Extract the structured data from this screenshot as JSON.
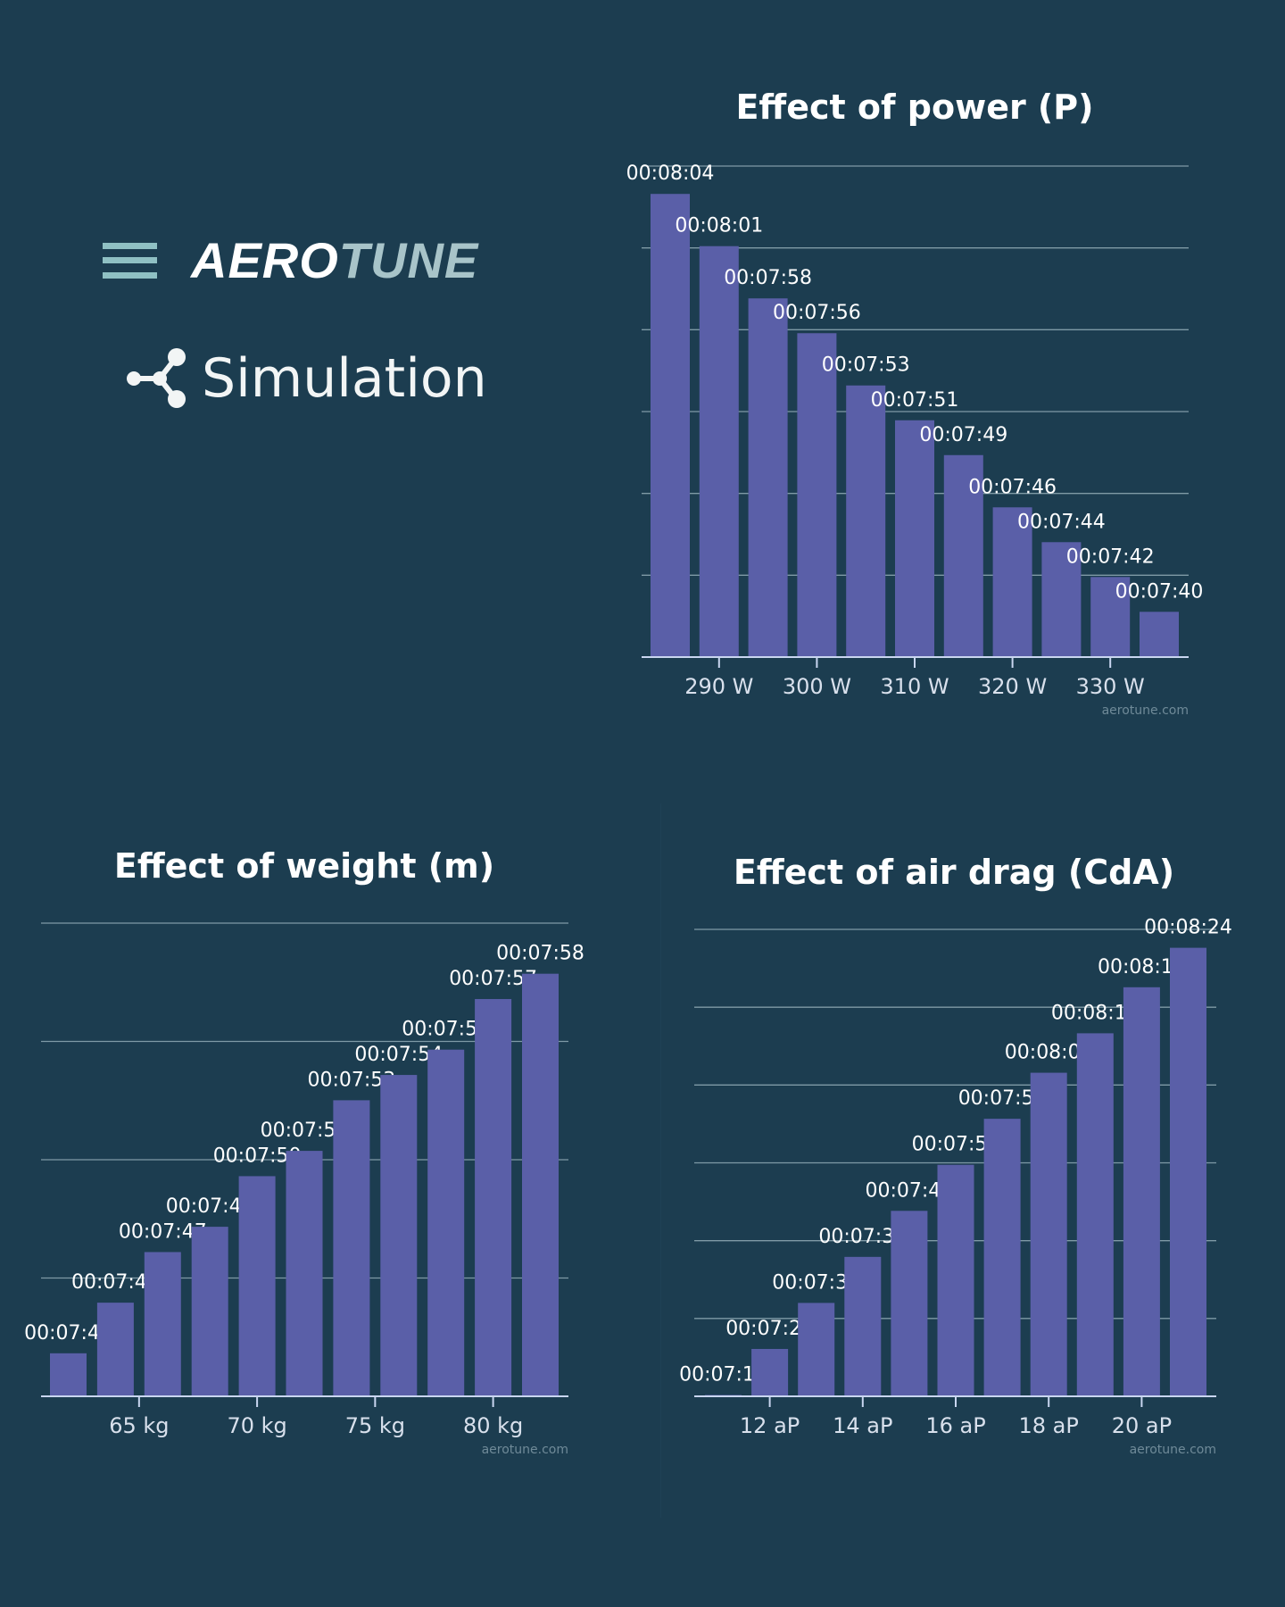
{
  "header": {
    "menu_icon": "hamburger-menu-icon",
    "logo": {
      "part1": "AERO",
      "part2": "TUNE"
    },
    "section_icon": "share-nodes-icon",
    "section_title": "Simulation"
  },
  "colors": {
    "background": "#1c3d50",
    "bar": "#5a5fa8",
    "gridline": "#7f9aa6",
    "axis": "#c9d6f0",
    "watermark": "#6f8a98",
    "logo_accent": "#a8c4c9"
  },
  "chart_data": [
    {
      "type": "bar",
      "title": "Effect of power (P)",
      "x": [
        285,
        290,
        295,
        300,
        305,
        310,
        315,
        320,
        325,
        330,
        335
      ],
      "x_unit": "W",
      "tick_labels": [
        "290 W",
        "300 W",
        "310 W",
        "320 W",
        "330 W"
      ],
      "ticks": [
        290,
        300,
        310,
        320,
        330
      ],
      "values": [
        "00:08:04",
        "00:08:01",
        "00:07:58",
        "00:07:56",
        "00:07:53",
        "00:07:51",
        "00:07:49",
        "00:07:46",
        "00:07:44",
        "00:07:42",
        "00:07:40"
      ],
      "ylim_seconds": [
        457.4,
        485.6
      ],
      "grid": true,
      "watermark": "aerotune.com"
    },
    {
      "type": "bar",
      "title": "Effect of weight (m)",
      "x": [
        62,
        64,
        66,
        68,
        70,
        72,
        74,
        76,
        78,
        80,
        82
      ],
      "x_unit": "kg",
      "tick_labels": [
        "65 kg",
        "70 kg",
        "75 kg",
        "80 kg"
      ],
      "ticks": [
        65,
        70,
        75,
        80
      ],
      "values": [
        "00:07:43",
        "00:07:45",
        "00:07:47",
        "00:07:48",
        "00:07:50",
        "00:07:51",
        "00:07:53",
        "00:07:54",
        "00:07:55",
        "00:07:57",
        "00:07:58"
      ],
      "ylim_seconds": [
        461.3,
        480
      ],
      "grid": true,
      "watermark": "aerotune.com"
    },
    {
      "type": "bar",
      "title": "Effect of air drag (CdA)",
      "x": [
        11,
        12,
        13,
        14,
        15,
        16,
        17,
        18,
        19,
        20,
        21
      ],
      "x_unit": "aP",
      "tick_labels": [
        "12 aP",
        "14 aP",
        "16 aP",
        "18 aP",
        "20 aP"
      ],
      "ticks": [
        12,
        14,
        16,
        18,
        20
      ],
      "values": [
        "00:07:16",
        "00:07:23",
        "00:07:30",
        "00:07:37",
        "00:07:44",
        "00:07:51",
        "00:07:58",
        "00:08:05",
        "00:08:11",
        "00:08:18",
        "00:08:24"
      ],
      "ylim_seconds": [
        435.8,
        506.8
      ],
      "grid": true,
      "watermark": "aerotune.com"
    }
  ]
}
